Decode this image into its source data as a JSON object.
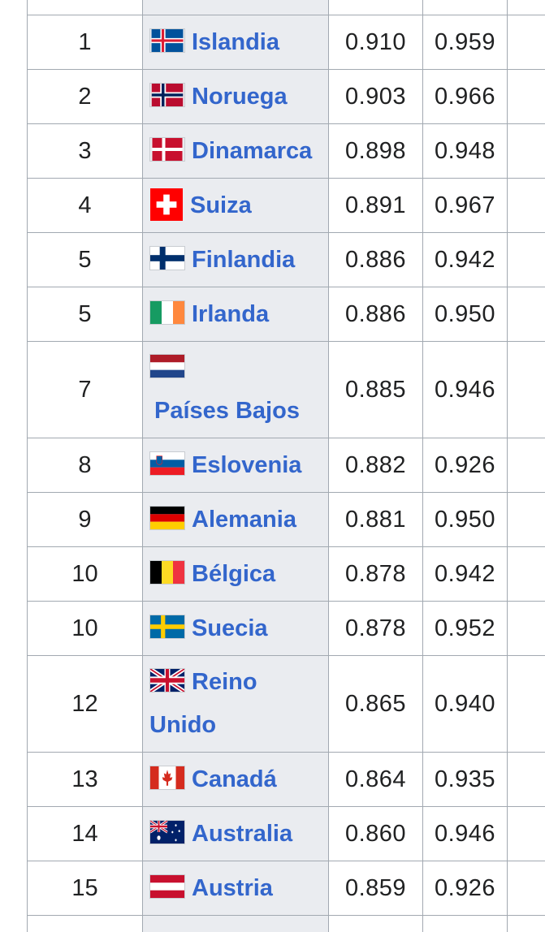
{
  "rows": [
    {
      "rank": "1",
      "country": "Islandia",
      "flag": "iceland-flag-icon",
      "v1": "0.910",
      "v2": "0.959"
    },
    {
      "rank": "2",
      "country": "Noruega",
      "flag": "norway-flag-icon",
      "v1": "0.903",
      "v2": "0.966"
    },
    {
      "rank": "3",
      "country": "Dinamarca",
      "flag": "denmark-flag-icon",
      "v1": "0.898",
      "v2": "0.948"
    },
    {
      "rank": "4",
      "country": "Suiza",
      "flag": "switzerland-flag-icon",
      "v1": "0.891",
      "v2": "0.967"
    },
    {
      "rank": "5",
      "country": "Finlandia",
      "flag": "finland-flag-icon",
      "v1": "0.886",
      "v2": "0.942"
    },
    {
      "rank": "5",
      "country": "Irlanda",
      "flag": "ireland-flag-icon",
      "v1": "0.886",
      "v2": "0.950"
    },
    {
      "rank": "7",
      "country": "Países Bajos",
      "flag": "netherlands-flag-icon",
      "v1": "0.885",
      "v2": "0.946"
    },
    {
      "rank": "8",
      "country": "Eslovenia",
      "flag": "slovenia-flag-icon",
      "v1": "0.882",
      "v2": "0.926"
    },
    {
      "rank": "9",
      "country": "Alemania",
      "flag": "germany-flag-icon",
      "v1": "0.881",
      "v2": "0.950"
    },
    {
      "rank": "10",
      "country": "Bélgica",
      "flag": "belgium-flag-icon",
      "v1": "0.878",
      "v2": "0.942"
    },
    {
      "rank": "10",
      "country": "Suecia",
      "flag": "sweden-flag-icon",
      "v1": "0.878",
      "v2": "0.952"
    },
    {
      "rank": "12",
      "country": "Reino Unido",
      "flag": "united-kingdom-flag-icon",
      "v1": "0.865",
      "v2": "0.940"
    },
    {
      "rank": "13",
      "country": "Canadá",
      "flag": "canada-flag-icon",
      "v1": "0.864",
      "v2": "0.935"
    },
    {
      "rank": "14",
      "country": "Australia",
      "flag": "australia-flag-icon",
      "v1": "0.860",
      "v2": "0.946"
    },
    {
      "rank": "15",
      "country": "Austria",
      "flag": "austria-flag-icon",
      "v1": "0.859",
      "v2": "0.926"
    }
  ],
  "colors": {
    "link": "#3366cc",
    "country_cell_bg": "#eaecf0",
    "border": "#a2a9b1",
    "text": "#202122"
  }
}
